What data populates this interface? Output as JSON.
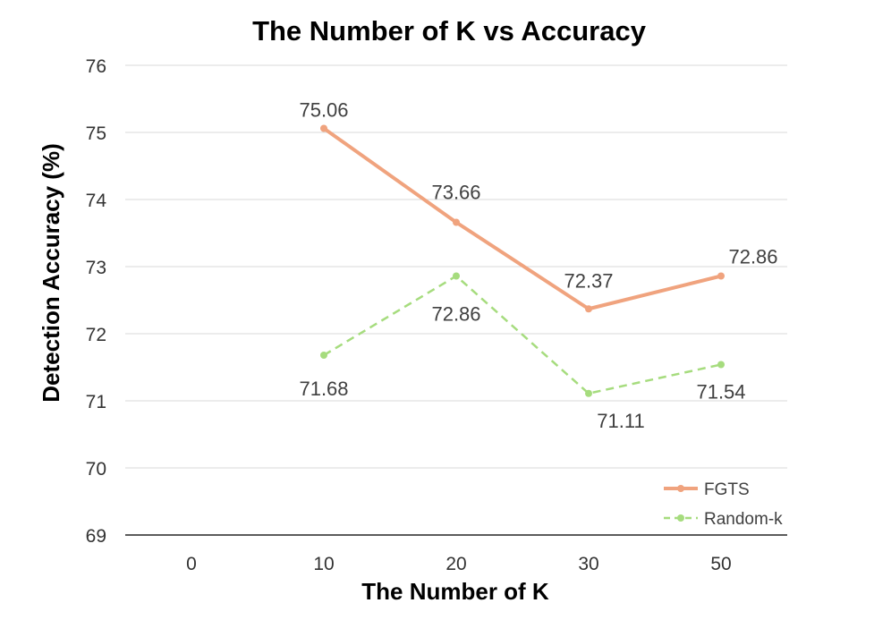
{
  "chart_data": {
    "type": "line",
    "title": "The Number of K vs Accuracy",
    "xlabel": "The Number of K",
    "ylabel": "Detection Accuracy (%)",
    "categories": [
      "0",
      "10",
      "20",
      "30",
      "50"
    ],
    "ylim": [
      69,
      76
    ],
    "yticks": [
      69,
      70,
      71,
      72,
      73,
      74,
      75,
      76
    ],
    "grid": true,
    "legend_position": "bottom-right",
    "series": [
      {
        "name": "FGTS",
        "values": [
          null,
          75.06,
          73.66,
          72.37,
          72.86
        ],
        "labels": [
          "",
          "75.06",
          "73.66",
          "72.37",
          "72.86"
        ],
        "color": "#f0a37e",
        "style": "solid"
      },
      {
        "name": "Random-k",
        "values": [
          null,
          71.68,
          72.86,
          71.11,
          71.54
        ],
        "labels": [
          "",
          "71.68",
          "72.86",
          "71.11",
          "71.54"
        ],
        "color": "#a6dc7e",
        "style": "dashed"
      }
    ]
  }
}
